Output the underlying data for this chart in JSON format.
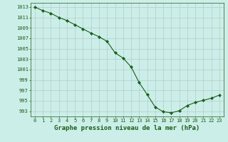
{
  "x": [
    0,
    1,
    2,
    3,
    4,
    5,
    6,
    7,
    8,
    9,
    10,
    11,
    12,
    13,
    14,
    15,
    16,
    17,
    18,
    19,
    20,
    21,
    22,
    23
  ],
  "y": [
    1013.0,
    1012.3,
    1011.8,
    1011.0,
    1010.4,
    1009.6,
    1008.8,
    1008.0,
    1007.3,
    1006.4,
    1004.2,
    1003.2,
    1001.5,
    998.5,
    996.2,
    993.8,
    992.9,
    992.7,
    993.1,
    994.1,
    994.7,
    995.1,
    995.5,
    996.1
  ],
  "line_color": "#1a5c1a",
  "marker": "D",
  "marker_size": 2.2,
  "bg_color": "#cceee8",
  "grid_color": "#b0cccc",
  "xlabel": "Graphe pression niveau de la mer (hPa)",
  "ylabel_ticks": [
    993,
    995,
    997,
    999,
    1001,
    1003,
    1005,
    1007,
    1009,
    1011,
    1013
  ],
  "ylim": [
    992.0,
    1013.8
  ],
  "xlim": [
    -0.5,
    23.5
  ],
  "xticks": [
    0,
    1,
    2,
    3,
    4,
    5,
    6,
    7,
    8,
    9,
    10,
    11,
    12,
    13,
    14,
    15,
    16,
    17,
    18,
    19,
    20,
    21,
    22,
    23
  ],
  "tick_label_fontsize": 5.0,
  "xlabel_fontsize": 6.5
}
